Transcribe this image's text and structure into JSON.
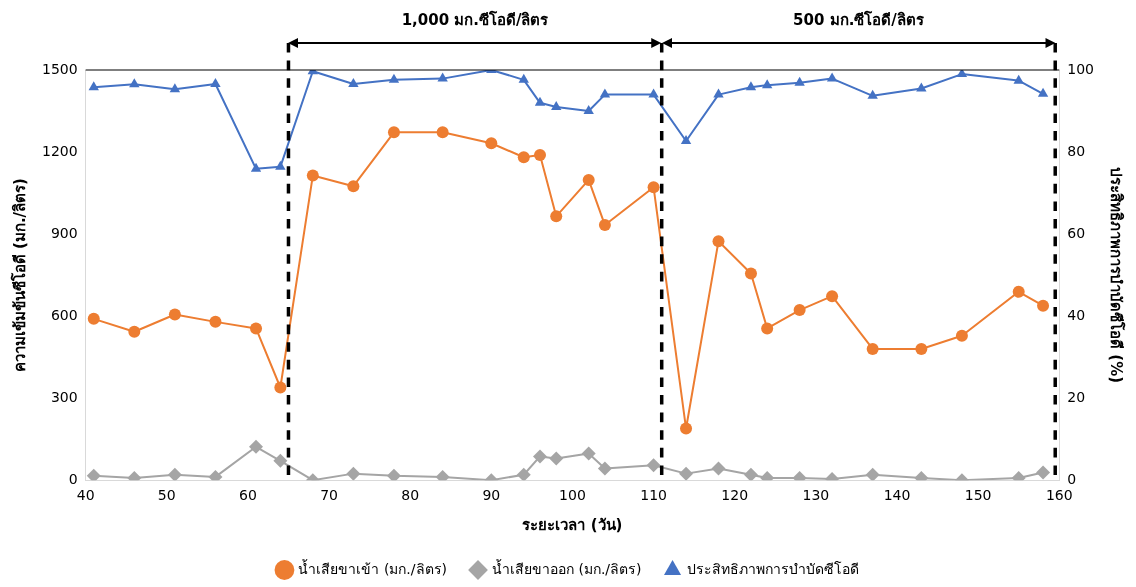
{
  "chart_data": {
    "type": "line",
    "xlabel": "ระยะเวลา (วัน)",
    "ylabel": "ความเข้มข้นซีโอดี (มก./ลิตร)",
    "y2label": "ประสิทธิภาพการบำบัดซีโอดี (%)",
    "x": [
      41,
      46,
      51,
      56,
      61,
      64,
      68,
      73,
      78,
      84,
      90,
      94,
      96,
      98,
      102,
      104,
      110,
      114,
      118,
      122,
      124,
      128,
      132,
      137,
      143,
      148,
      155,
      158
    ],
    "series": [
      {
        "name": "น้ำเสียขาเข้า (มก./ลิตร)",
        "color": "#ed7d31",
        "marker": "circle",
        "values": [
          590,
          543,
          606,
          579,
          555,
          339,
          1114,
          1075,
          1272,
          1272,
          1232,
          1181,
          1189,
          965,
          1098,
          933,
          1071,
          189,
          874,
          756,
          555,
          622,
          673,
          480,
          480,
          528,
          689,
          638
        ]
      },
      {
        "name": "น้ำเสียขาออก (มก./ลิตร)",
        "color": "#a5a5a5",
        "marker": "diamond",
        "values": [
          16,
          8,
          20,
          12,
          122,
          71,
          0,
          24,
          16,
          12,
          0,
          20,
          87,
          79,
          98,
          43,
          55,
          24,
          43,
          20,
          8,
          8,
          4,
          20,
          8,
          0,
          8,
          28
        ]
      },
      {
        "name": "ประสิทธิภาพการบำบัดซีโอดี",
        "color": "#4472c4",
        "marker": "triangle",
        "axis": "y2",
        "values": [
          95.8,
          96.5,
          95.3,
          96.6,
          75.9,
          76.4,
          99.7,
          96.6,
          97.6,
          97.9,
          100,
          97.6,
          92,
          91,
          90,
          94,
          94,
          82.7,
          94,
          95.8,
          96.3,
          96.9,
          97.9,
          93.7,
          95.5,
          99,
          97.4,
          94.2
        ]
      }
    ],
    "xlim": [
      40,
      160
    ],
    "xticks": [
      40,
      50,
      60,
      70,
      80,
      90,
      100,
      110,
      120,
      130,
      140,
      150,
      160
    ],
    "ylim": [
      0,
      1500
    ],
    "yticks": [
      0,
      300,
      600,
      900,
      1200,
      1500
    ],
    "y2lim": [
      0,
      100
    ],
    "y2ticks": [
      0,
      20,
      40,
      60,
      80,
      100
    ],
    "ref_lines": [
      {
        "axis": "x",
        "value": 65,
        "color": "#000000",
        "line_style": "dashed"
      },
      {
        "axis": "x",
        "value": 111,
        "color": "#000000",
        "line_style": "dashed"
      },
      {
        "axis": "x",
        "value": 159.5,
        "color": "#000000",
        "line_style": "dashed"
      }
    ],
    "annotations": [
      "1,000 มก.ซีโอดี/ลิตร",
      "500 มก.ซีโอดี/ลิตร"
    ],
    "grid": false,
    "legend": "bottom",
    "line_style": "solid"
  }
}
